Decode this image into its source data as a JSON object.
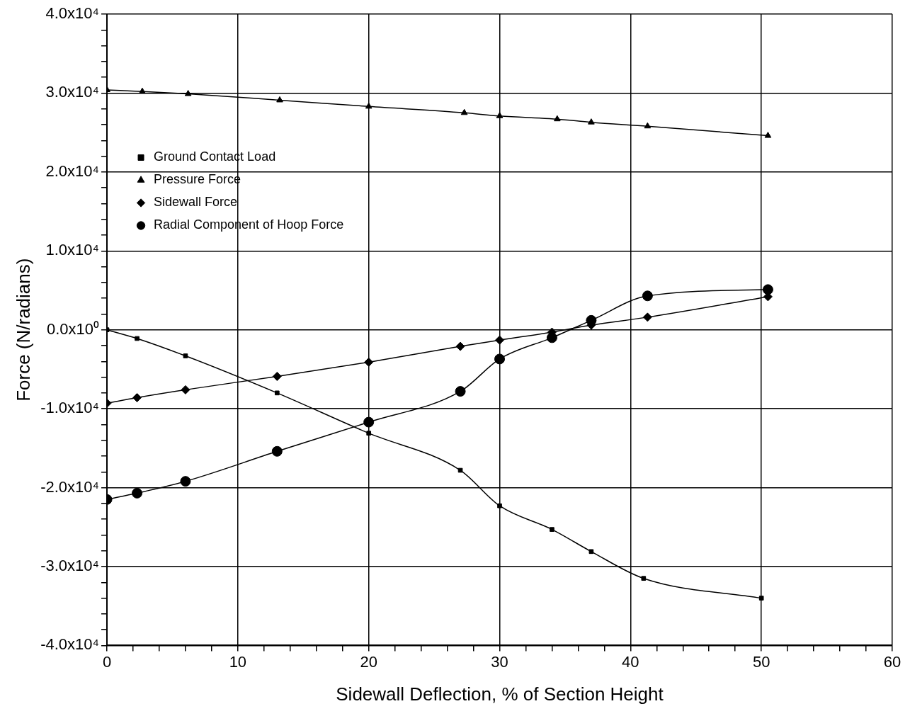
{
  "chart_data": {
    "type": "line",
    "xlabel": "Sidewall Deflection, % of Section Height",
    "ylabel": "Force (N/radians)",
    "xlim": [
      0,
      60
    ],
    "xticks": [
      0,
      {
        "value": 2,
        "label": null
      },
      {
        "value": 4,
        "label": null
      },
      {
        "value": 6,
        "label": null
      },
      {
        "value": 8,
        "label": null
      },
      10,
      {
        "value": 12,
        "label": null
      },
      {
        "value": 14,
        "label": null
      },
      {
        "value": 16,
        "label": null
      },
      {
        "value": 18,
        "label": null
      },
      20,
      {
        "value": 22,
        "label": null
      },
      {
        "value": 24,
        "label": null
      },
      {
        "value": 26,
        "label": null
      },
      {
        "value": 28,
        "label": null
      },
      30,
      {
        "value": 32,
        "label": null
      },
      {
        "value": 34,
        "label": null
      },
      {
        "value": 36,
        "label": null
      },
      {
        "value": 38,
        "label": null
      },
      40,
      {
        "value": 42,
        "label": null
      },
      {
        "value": 44,
        "label": null
      },
      {
        "value": 46,
        "label": null
      },
      {
        "value": 48,
        "label": null
      },
      50,
      {
        "value": 52,
        "label": null
      },
      {
        "value": 54,
        "label": null
      },
      {
        "value": 56,
        "label": null
      },
      {
        "value": 58,
        "label": null
      },
      60
    ],
    "ylim": [
      -40000,
      40000
    ],
    "yticks": [
      {
        "value": -40000,
        "label": "-4.0x10⁴"
      },
      {
        "value": -38000,
        "label": null
      },
      {
        "value": -36000,
        "label": null
      },
      {
        "value": -34000,
        "label": null
      },
      {
        "value": -32000,
        "label": null
      },
      {
        "value": -30000,
        "label": "-3.0x10⁴"
      },
      {
        "value": -28000,
        "label": null
      },
      {
        "value": -26000,
        "label": null
      },
      {
        "value": -24000,
        "label": null
      },
      {
        "value": -22000,
        "label": null
      },
      {
        "value": -20000,
        "label": "-2.0x10⁴"
      },
      {
        "value": -18000,
        "label": null
      },
      {
        "value": -16000,
        "label": null
      },
      {
        "value": -14000,
        "label": null
      },
      {
        "value": -12000,
        "label": null
      },
      {
        "value": -10000,
        "label": "-1.0x10⁴"
      },
      {
        "value": -8000,
        "label": null
      },
      {
        "value": -6000,
        "label": null
      },
      {
        "value": -4000,
        "label": null
      },
      {
        "value": -2000,
        "label": null
      },
      {
        "value": 0,
        "label": "0.0x10⁰"
      },
      {
        "value": 2000,
        "label": null
      },
      {
        "value": 4000,
        "label": null
      },
      {
        "value": 6000,
        "label": null
      },
      {
        "value": 8000,
        "label": null
      },
      {
        "value": 10000,
        "label": "1.0x10⁴"
      },
      {
        "value": 12000,
        "label": null
      },
      {
        "value": 14000,
        "label": null
      },
      {
        "value": 16000,
        "label": null
      },
      {
        "value": 18000,
        "label": null
      },
      {
        "value": 20000,
        "label": "2.0x10⁴"
      },
      {
        "value": 22000,
        "label": null
      },
      {
        "value": 24000,
        "label": null
      },
      {
        "value": 26000,
        "label": null
      },
      {
        "value": 28000,
        "label": null
      },
      {
        "value": 30000,
        "label": "3.0x10⁴"
      },
      {
        "value": 32000,
        "label": null
      },
      {
        "value": 34000,
        "label": null
      },
      {
        "value": 36000,
        "label": null
      },
      {
        "value": 38000,
        "label": null
      },
      {
        "value": 40000,
        "label": "4.0x10⁴"
      }
    ],
    "grid": true,
    "legend": "top left",
    "line_style": "solid",
    "series": [
      {
        "name": "Ground Contact Load",
        "color": "#000000",
        "marker": "square",
        "x": [
          0,
          2.3,
          6,
          13,
          20,
          27,
          30,
          34,
          37,
          41,
          50
        ],
        "values": [
          0,
          -1100,
          -3300,
          -8000,
          -13100,
          -17800,
          -22300,
          -25300,
          -28100,
          -31500,
          -34000
        ]
      },
      {
        "name": "Pressure Force",
        "color": "#000000",
        "marker": "triangle",
        "x": [
          0,
          2.7,
          6.2,
          13.2,
          20,
          27.3,
          30,
          34.4,
          37,
          41.3,
          50.5
        ],
        "values": [
          30400,
          30200,
          29900,
          29100,
          28300,
          27500,
          27100,
          26700,
          26300,
          25800,
          24600
        ]
      },
      {
        "name": "Sidewall Force",
        "color": "#000000",
        "marker": "diamond",
        "x": [
          0,
          2.3,
          6,
          13,
          20,
          27,
          30,
          34,
          37,
          41.3,
          50.5
        ],
        "values": [
          -9300,
          -8600,
          -7600,
          -5900,
          -4100,
          -2100,
          -1300,
          -300,
          600,
          1600,
          4200
        ]
      },
      {
        "name": "Radial Component of Hoop Force",
        "color": "#000000",
        "marker": "circle",
        "x": [
          0,
          2.3,
          6,
          13,
          20,
          27,
          30,
          34,
          37,
          41.3,
          50.5
        ],
        "values": [
          -21500,
          -20700,
          -19200,
          -15400,
          -11700,
          -7800,
          -3700,
          -1000,
          1200,
          4300,
          5100
        ]
      }
    ]
  }
}
